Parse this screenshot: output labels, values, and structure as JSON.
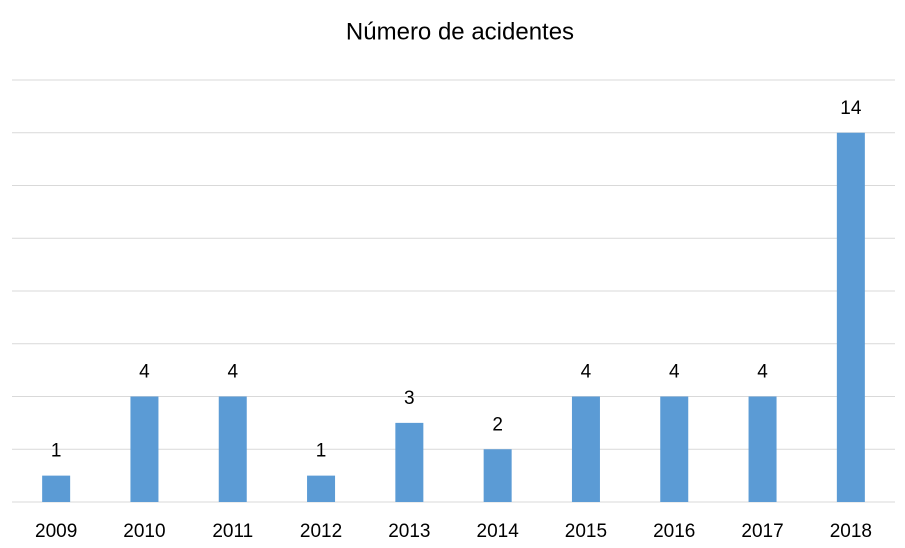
{
  "chart_data": {
    "type": "bar",
    "title": "Número de acidentes",
    "categories": [
      "2009",
      "2010",
      "2011",
      "2012",
      "2013",
      "2014",
      "2015",
      "2016",
      "2017",
      "2018"
    ],
    "values": [
      1,
      4,
      4,
      1,
      3,
      2,
      4,
      4,
      4,
      14
    ],
    "color": "#5b9bd5",
    "ylim": [
      0,
      16
    ],
    "yticks": [
      0,
      2,
      4,
      6,
      8,
      10,
      12,
      14,
      16
    ],
    "grid": true
  }
}
